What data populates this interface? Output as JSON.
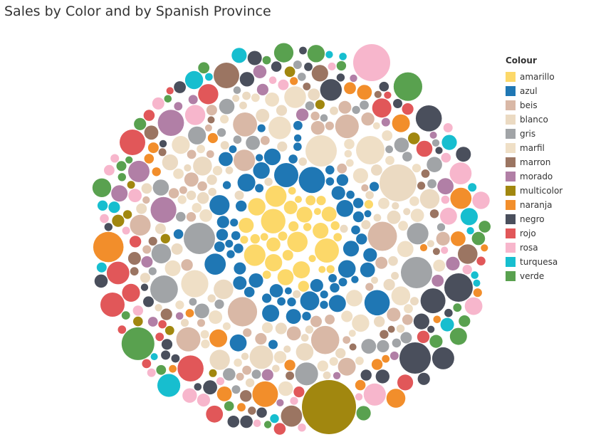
{
  "chart_data": {
    "type": "packed bubble",
    "title": "Sales by Color and by Spanish Province",
    "legend": {
      "title": "Colour",
      "placement": "right",
      "entries": [
        {
          "name": "amarillo",
          "color": "#fcd869"
        },
        {
          "name": "azul",
          "color": "#1f77b4"
        },
        {
          "name": "beis",
          "color": "#d9b8a6"
        },
        {
          "name": "blanco",
          "color": "#ebdac2"
        },
        {
          "name": "gris",
          "color": "#a1a4a7"
        },
        {
          "name": "marfil",
          "color": "#efdfc6"
        },
        {
          "name": "marron",
          "color": "#9b7562"
        },
        {
          "name": "morado",
          "color": "#b17fa6"
        },
        {
          "name": "multicolor",
          "color": "#a1870f"
        },
        {
          "name": "naranja",
          "color": "#f28e2b"
        },
        {
          "name": "negro",
          "color": "#4a4f5c"
        },
        {
          "name": "rojo",
          "color": "#e15759"
        },
        {
          "name": "rosa",
          "color": "#f7b6cc"
        },
        {
          "name": "turquesa",
          "color": "#17becf"
        },
        {
          "name": "verde",
          "color": "#59a14f"
        }
      ]
    }
  }
}
